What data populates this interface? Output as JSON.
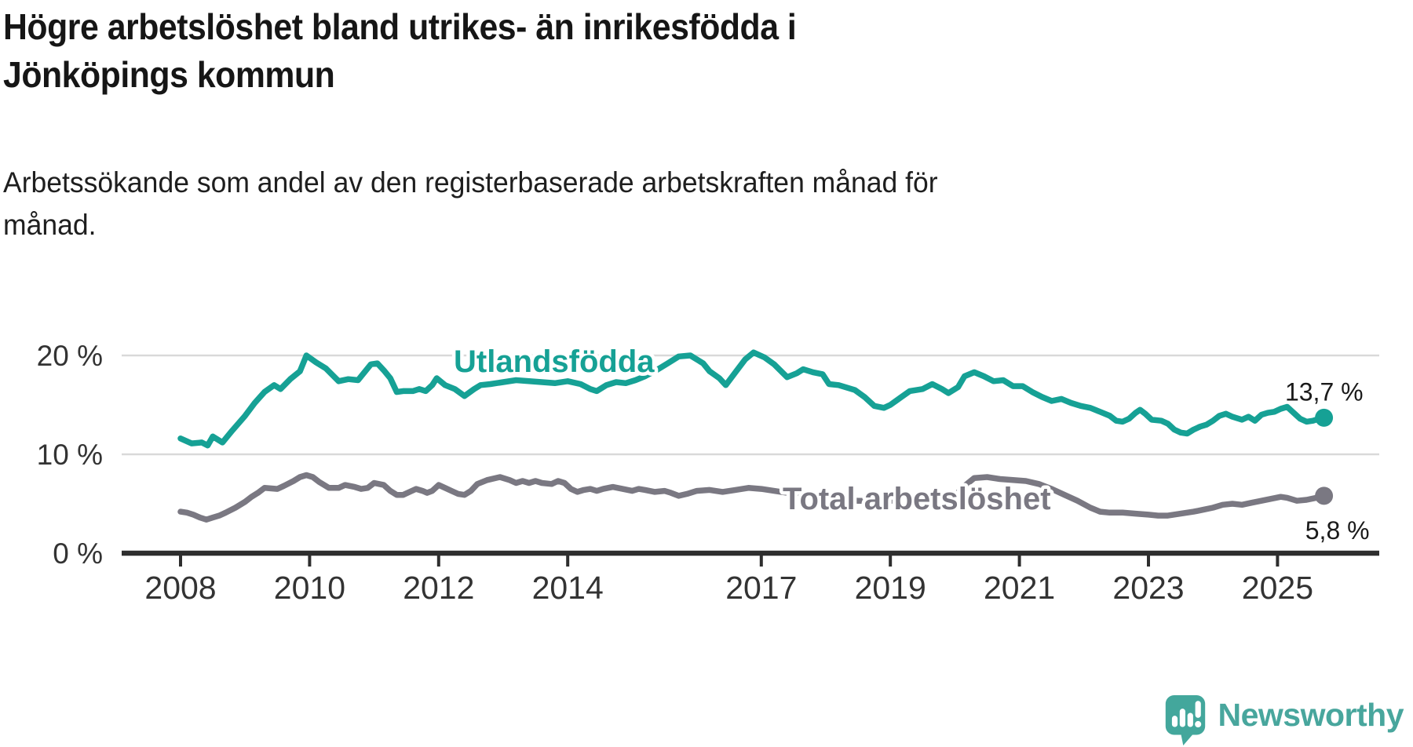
{
  "header": {
    "title_lines": [
      "Högre arbetslöshet bland utrikes- än inrikesfödda i",
      "Jönköpings kommun"
    ],
    "subtitle_lines": [
      "Arbetssökande som andel av den registerbaserade arbetskraften månad för",
      "månad."
    ]
  },
  "footer": {
    "brand": "Newsworthy",
    "logo_icon": "speech-bubble-bar-chart-icon",
    "brand_color": "#48a69d"
  },
  "colors": {
    "foreign_born_line": "#16a195",
    "total_line": "#7a7882",
    "axis": "#2e2e2e",
    "gridline": "#d9d9d9",
    "tick_label": "#333333",
    "end_label": "#1a1a1a"
  },
  "chart_data": {
    "type": "line",
    "title": "Högre arbetslöshet bland utrikes- än inrikesfödda i Jönköpings kommun",
    "subtitle": "Arbetssökande som andel av den registerbaserade arbetskraften månad för månad.",
    "y_unit": "%",
    "x_axis": {
      "ticks": [
        2008,
        2010,
        2012,
        2014,
        2017,
        2019,
        2021,
        2023,
        2025
      ],
      "range_start": 2008.0,
      "range_end": 2025.75
    },
    "y_axis": {
      "ticks": [
        20,
        10,
        0
      ],
      "labels": [
        "20 %",
        "10 %",
        "0 %"
      ],
      "gridlines": [
        20,
        10
      ],
      "range": [
        0,
        21.7
      ]
    },
    "legend_position": "inline-labels",
    "grid": "horizontal-only",
    "series": [
      {
        "name": "Utlandsfödda",
        "color": "#16a195",
        "end_label": "13,7 %",
        "end_value": 13.7,
        "points": [
          [
            2008.0,
            11.6
          ],
          [
            2008.17,
            11.1
          ],
          [
            2008.33,
            11.2
          ],
          [
            2008.42,
            10.9
          ],
          [
            2008.5,
            11.8
          ],
          [
            2008.65,
            11.2
          ],
          [
            2008.8,
            12.4
          ],
          [
            2009.0,
            13.9
          ],
          [
            2009.15,
            15.2
          ],
          [
            2009.3,
            16.3
          ],
          [
            2009.45,
            17.0
          ],
          [
            2009.55,
            16.6
          ],
          [
            2009.7,
            17.6
          ],
          [
            2009.85,
            18.4
          ],
          [
            2009.95,
            20.0
          ],
          [
            2010.1,
            19.3
          ],
          [
            2010.25,
            18.7
          ],
          [
            2010.45,
            17.4
          ],
          [
            2010.6,
            17.6
          ],
          [
            2010.75,
            17.5
          ],
          [
            2010.95,
            19.1
          ],
          [
            2011.05,
            19.2
          ],
          [
            2011.15,
            18.5
          ],
          [
            2011.25,
            17.7
          ],
          [
            2011.35,
            16.3
          ],
          [
            2011.45,
            16.4
          ],
          [
            2011.6,
            16.4
          ],
          [
            2011.7,
            16.6
          ],
          [
            2011.8,
            16.4
          ],
          [
            2011.9,
            17.0
          ],
          [
            2011.97,
            17.7
          ],
          [
            2012.1,
            17.0
          ],
          [
            2012.25,
            16.6
          ],
          [
            2012.4,
            15.9
          ],
          [
            2012.55,
            16.6
          ],
          [
            2012.65,
            17.0
          ],
          [
            2012.8,
            17.1
          ],
          [
            2013.0,
            17.3
          ],
          [
            2013.2,
            17.5
          ],
          [
            2013.4,
            17.4
          ],
          [
            2013.6,
            17.3
          ],
          [
            2013.8,
            17.2
          ],
          [
            2014.0,
            17.4
          ],
          [
            2014.2,
            17.1
          ],
          [
            2014.35,
            16.6
          ],
          [
            2014.45,
            16.4
          ],
          [
            2014.6,
            17.0
          ],
          [
            2014.75,
            17.3
          ],
          [
            2014.9,
            17.2
          ],
          [
            2015.05,
            17.5
          ],
          [
            2015.2,
            17.9
          ],
          [
            2015.4,
            18.6
          ],
          [
            2015.55,
            19.2
          ],
          [
            2015.72,
            19.9
          ],
          [
            2015.9,
            20.0
          ],
          [
            2016.1,
            19.2
          ],
          [
            2016.2,
            18.4
          ],
          [
            2016.35,
            17.7
          ],
          [
            2016.45,
            17.0
          ],
          [
            2016.6,
            18.3
          ],
          [
            2016.75,
            19.6
          ],
          [
            2016.88,
            20.3
          ],
          [
            2017.05,
            19.8
          ],
          [
            2017.2,
            19.1
          ],
          [
            2017.4,
            17.8
          ],
          [
            2017.55,
            18.2
          ],
          [
            2017.65,
            18.6
          ],
          [
            2017.8,
            18.3
          ],
          [
            2017.95,
            18.1
          ],
          [
            2018.05,
            17.1
          ],
          [
            2018.2,
            17.0
          ],
          [
            2018.45,
            16.5
          ],
          [
            2018.6,
            15.8
          ],
          [
            2018.75,
            14.9
          ],
          [
            2018.9,
            14.7
          ],
          [
            2019.0,
            15.0
          ],
          [
            2019.15,
            15.7
          ],
          [
            2019.3,
            16.4
          ],
          [
            2019.5,
            16.6
          ],
          [
            2019.65,
            17.1
          ],
          [
            2019.8,
            16.6
          ],
          [
            2019.9,
            16.2
          ],
          [
            2020.05,
            16.8
          ],
          [
            2020.15,
            17.9
          ],
          [
            2020.3,
            18.3
          ],
          [
            2020.45,
            17.9
          ],
          [
            2020.6,
            17.4
          ],
          [
            2020.75,
            17.5
          ],
          [
            2020.9,
            16.9
          ],
          [
            2021.05,
            16.9
          ],
          [
            2021.2,
            16.3
          ],
          [
            2021.35,
            15.8
          ],
          [
            2021.5,
            15.4
          ],
          [
            2021.65,
            15.6
          ],
          [
            2021.8,
            15.2
          ],
          [
            2021.95,
            14.9
          ],
          [
            2022.1,
            14.7
          ],
          [
            2022.25,
            14.3
          ],
          [
            2022.4,
            13.9
          ],
          [
            2022.5,
            13.4
          ],
          [
            2022.6,
            13.3
          ],
          [
            2022.7,
            13.6
          ],
          [
            2022.8,
            14.2
          ],
          [
            2022.87,
            14.5
          ],
          [
            2022.95,
            14.1
          ],
          [
            2023.05,
            13.5
          ],
          [
            2023.2,
            13.4
          ],
          [
            2023.3,
            13.1
          ],
          [
            2023.4,
            12.5
          ],
          [
            2023.5,
            12.2
          ],
          [
            2023.6,
            12.1
          ],
          [
            2023.7,
            12.5
          ],
          [
            2023.8,
            12.8
          ],
          [
            2023.9,
            13.0
          ],
          [
            2024.0,
            13.4
          ],
          [
            2024.1,
            13.9
          ],
          [
            2024.2,
            14.1
          ],
          [
            2024.3,
            13.8
          ],
          [
            2024.45,
            13.5
          ],
          [
            2024.55,
            13.8
          ],
          [
            2024.65,
            13.4
          ],
          [
            2024.75,
            14.0
          ],
          [
            2024.85,
            14.2
          ],
          [
            2024.95,
            14.3
          ],
          [
            2025.05,
            14.6
          ],
          [
            2025.15,
            14.8
          ],
          [
            2025.25,
            14.2
          ],
          [
            2025.35,
            13.6
          ],
          [
            2025.45,
            13.3
          ],
          [
            2025.55,
            13.4
          ],
          [
            2025.65,
            13.6
          ],
          [
            2025.72,
            13.7
          ]
        ]
      },
      {
        "name": "Total arbetslöshet",
        "color": "#7a7882",
        "end_label": "5,8 %",
        "end_value": 5.8,
        "points": [
          [
            2008.0,
            4.2
          ],
          [
            2008.1,
            4.1
          ],
          [
            2008.2,
            3.9
          ],
          [
            2008.3,
            3.6
          ],
          [
            2008.4,
            3.4
          ],
          [
            2008.5,
            3.6
          ],
          [
            2008.6,
            3.8
          ],
          [
            2008.7,
            4.1
          ],
          [
            2008.85,
            4.6
          ],
          [
            2009.0,
            5.2
          ],
          [
            2009.1,
            5.7
          ],
          [
            2009.2,
            6.1
          ],
          [
            2009.3,
            6.6
          ],
          [
            2009.5,
            6.5
          ],
          [
            2009.6,
            6.8
          ],
          [
            2009.75,
            7.3
          ],
          [
            2009.85,
            7.7
          ],
          [
            2009.95,
            7.9
          ],
          [
            2010.05,
            7.7
          ],
          [
            2010.15,
            7.2
          ],
          [
            2010.3,
            6.6
          ],
          [
            2010.45,
            6.6
          ],
          [
            2010.55,
            6.9
          ],
          [
            2010.7,
            6.7
          ],
          [
            2010.8,
            6.5
          ],
          [
            2010.9,
            6.6
          ],
          [
            2011.0,
            7.1
          ],
          [
            2011.15,
            6.9
          ],
          [
            2011.25,
            6.3
          ],
          [
            2011.35,
            5.9
          ],
          [
            2011.45,
            5.9
          ],
          [
            2011.55,
            6.2
          ],
          [
            2011.65,
            6.5
          ],
          [
            2011.75,
            6.3
          ],
          [
            2011.82,
            6.1
          ],
          [
            2011.9,
            6.3
          ],
          [
            2012.0,
            6.9
          ],
          [
            2012.1,
            6.6
          ],
          [
            2012.2,
            6.3
          ],
          [
            2012.3,
            6.0
          ],
          [
            2012.4,
            5.9
          ],
          [
            2012.5,
            6.3
          ],
          [
            2012.6,
            7.0
          ],
          [
            2012.75,
            7.4
          ],
          [
            2012.95,
            7.7
          ],
          [
            2013.1,
            7.4
          ],
          [
            2013.2,
            7.1
          ],
          [
            2013.3,
            7.3
          ],
          [
            2013.4,
            7.1
          ],
          [
            2013.5,
            7.3
          ],
          [
            2013.6,
            7.1
          ],
          [
            2013.75,
            7.0
          ],
          [
            2013.85,
            7.3
          ],
          [
            2013.95,
            7.1
          ],
          [
            2014.05,
            6.5
          ],
          [
            2014.15,
            6.2
          ],
          [
            2014.25,
            6.4
          ],
          [
            2014.35,
            6.5
          ],
          [
            2014.45,
            6.3
          ],
          [
            2014.55,
            6.5
          ],
          [
            2014.7,
            6.7
          ],
          [
            2014.85,
            6.5
          ],
          [
            2015.0,
            6.3
          ],
          [
            2015.1,
            6.5
          ],
          [
            2015.2,
            6.4
          ],
          [
            2015.35,
            6.2
          ],
          [
            2015.5,
            6.3
          ],
          [
            2015.6,
            6.1
          ],
          [
            2015.72,
            5.8
          ],
          [
            2015.85,
            6.0
          ],
          [
            2016.0,
            6.3
          ],
          [
            2016.2,
            6.4
          ],
          [
            2016.4,
            6.2
          ],
          [
            2016.6,
            6.4
          ],
          [
            2016.8,
            6.6
          ],
          [
            2017.0,
            6.5
          ],
          [
            2017.2,
            6.3
          ],
          [
            2017.4,
            6.1
          ],
          [
            2017.6,
            5.9
          ],
          [
            2017.8,
            5.7
          ],
          [
            2018.0,
            5.6
          ],
          [
            2018.25,
            5.4
          ],
          [
            2018.5,
            5.3
          ],
          [
            2018.75,
            5.3
          ],
          [
            2019.0,
            5.3
          ],
          [
            2019.25,
            5.4
          ],
          [
            2019.5,
            5.5
          ],
          [
            2019.75,
            5.6
          ],
          [
            2020.0,
            5.8
          ],
          [
            2020.15,
            6.8
          ],
          [
            2020.3,
            7.6
          ],
          [
            2020.5,
            7.7
          ],
          [
            2020.7,
            7.5
          ],
          [
            2020.9,
            7.4
          ],
          [
            2021.1,
            7.3
          ],
          [
            2021.3,
            7.0
          ],
          [
            2021.5,
            6.5
          ],
          [
            2021.7,
            5.9
          ],
          [
            2021.9,
            5.3
          ],
          [
            2022.1,
            4.6
          ],
          [
            2022.25,
            4.2
          ],
          [
            2022.4,
            4.1
          ],
          [
            2022.6,
            4.1
          ],
          [
            2022.8,
            4.0
          ],
          [
            2023.0,
            3.9
          ],
          [
            2023.15,
            3.8
          ],
          [
            2023.3,
            3.8
          ],
          [
            2023.5,
            4.0
          ],
          [
            2023.7,
            4.2
          ],
          [
            2023.85,
            4.4
          ],
          [
            2024.0,
            4.6
          ],
          [
            2024.15,
            4.9
          ],
          [
            2024.3,
            5.0
          ],
          [
            2024.45,
            4.9
          ],
          [
            2024.6,
            5.1
          ],
          [
            2024.75,
            5.3
          ],
          [
            2024.9,
            5.5
          ],
          [
            2025.05,
            5.7
          ],
          [
            2025.15,
            5.6
          ],
          [
            2025.3,
            5.3
          ],
          [
            2025.45,
            5.4
          ],
          [
            2025.6,
            5.6
          ],
          [
            2025.72,
            5.8
          ]
        ]
      }
    ]
  }
}
